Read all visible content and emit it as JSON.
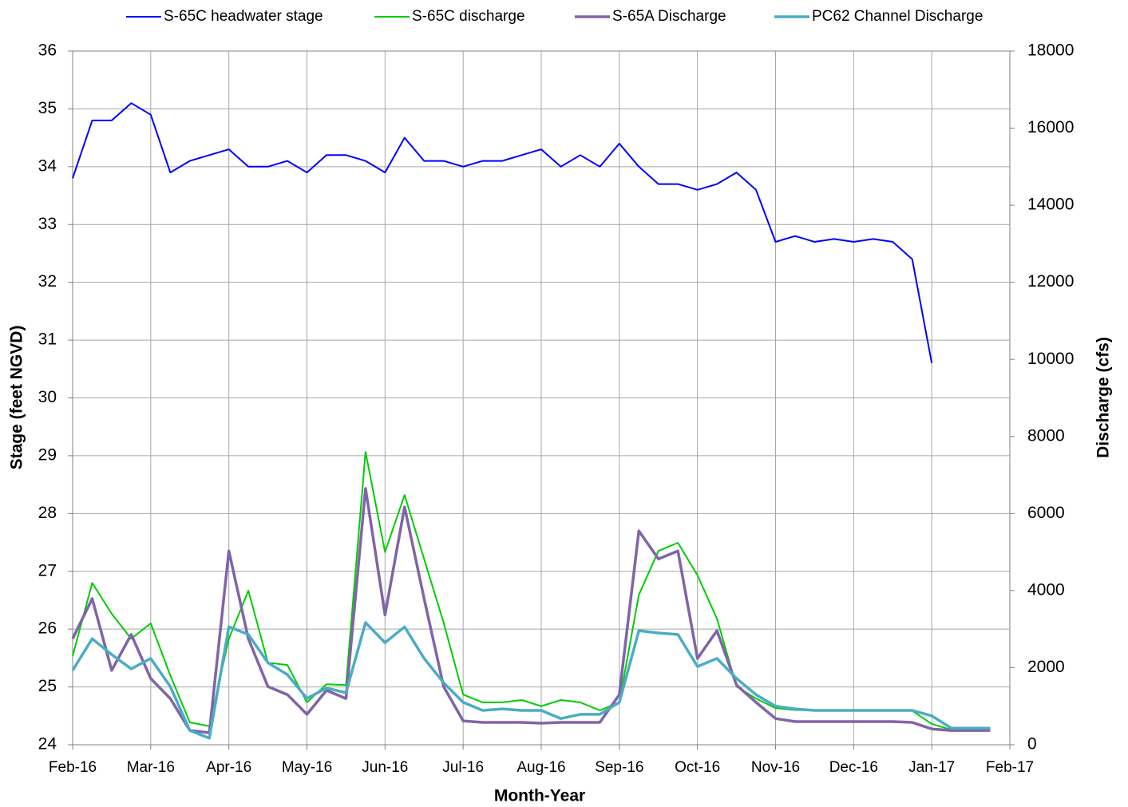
{
  "chart_data": {
    "type": "line",
    "xlabel": "Month-Year",
    "ylabel": "Stage (feet NGVD)",
    "y2label": "Discharge (cfs)",
    "x": [
      0,
      0.25,
      0.5,
      0.75,
      1,
      1.25,
      1.5,
      1.75,
      2,
      2.25,
      2.5,
      2.75,
      3,
      3.25,
      3.5,
      3.75,
      4,
      4.25,
      4.5,
      4.75,
      5,
      5.25,
      5.5,
      5.75,
      6,
      6.25,
      6.5,
      6.75,
      7,
      7.25,
      7.5,
      7.75,
      8,
      8.25,
      8.5,
      8.75,
      9,
      9.25,
      9.5,
      9.75,
      10,
      10.25,
      10.5,
      10.75,
      11,
      11.25,
      11.5,
      11.75
    ],
    "xlim": [
      0,
      12
    ],
    "xticks": [
      {
        "value": 0,
        "label": "Feb-16"
      },
      {
        "value": 1,
        "label": "Mar-16"
      },
      {
        "value": 2,
        "label": "Apr-16"
      },
      {
        "value": 3,
        "label": "May-16"
      },
      {
        "value": 4,
        "label": "Jun-16"
      },
      {
        "value": 5,
        "label": "Jul-16"
      },
      {
        "value": 6,
        "label": "Aug-16"
      },
      {
        "value": 7,
        "label": "Sep-16"
      },
      {
        "value": 8,
        "label": "Oct-16"
      },
      {
        "value": 9,
        "label": "Nov-16"
      },
      {
        "value": 10,
        "label": "Dec-16"
      },
      {
        "value": 11,
        "label": "Jan-17"
      },
      {
        "value": 12,
        "label": "Feb-17"
      }
    ],
    "ylim": [
      24,
      36
    ],
    "yticks": [
      24,
      25,
      26,
      27,
      28,
      29,
      30,
      31,
      32,
      33,
      34,
      35,
      36
    ],
    "y2lim": [
      0,
      18000
    ],
    "y2ticks": [
      0,
      2000,
      4000,
      6000,
      8000,
      10000,
      12000,
      14000,
      16000,
      18000
    ],
    "grid": true,
    "legend": "top",
    "series": [
      {
        "name": "S-65C headwater stage",
        "color": "#0000ff",
        "values": [
          33.8,
          34.8,
          34.8,
          35.1,
          34.9,
          33.9,
          34.1,
          34.2,
          34.3,
          34.0,
          34.0,
          34.1,
          33.9,
          34.2,
          34.2,
          34.1,
          33.9,
          34.5,
          34.1,
          34.1,
          34.0,
          34.1,
          34.1,
          34.2,
          34.3,
          34.0,
          34.2,
          34.0,
          34.4,
          34.0,
          33.7,
          33.7,
          33.6,
          33.7,
          33.9,
          33.6,
          32.7,
          32.8,
          32.7,
          32.75,
          32.7,
          32.75,
          32.7,
          32.4,
          30.6,
          null,
          null,
          null
        ]
      },
      {
        "name": "S-65C discharge",
        "color": "#00cc00",
        "axis": "y2",
        "values": [
          2300,
          4200,
          3400,
          2750,
          3150,
          1800,
          580,
          480,
          2750,
          4000,
          2130,
          2070,
          1100,
          1570,
          1550,
          7600,
          5000,
          6480,
          4820,
          3170,
          1300,
          1100,
          1100,
          1160,
          1000,
          1160,
          1100,
          890,
          1100,
          3890,
          5030,
          5240,
          4400,
          3270,
          1510,
          1200,
          950,
          900,
          890,
          880,
          880,
          880,
          880,
          880,
          540,
          390,
          390,
          390
        ]
      },
      {
        "name": "S-65A Discharge",
        "color": "#8064a8",
        "axis": "y2",
        "values": [
          2750,
          3790,
          1930,
          2860,
          1720,
          1200,
          370,
          310,
          5030,
          2750,
          1510,
          1300,
          790,
          1410,
          1200,
          6650,
          3370,
          6170,
          3790,
          1510,
          620,
          580,
          580,
          580,
          560,
          580,
          580,
          580,
          1300,
          5550,
          4820,
          5030,
          2240,
          2960,
          1550,
          1100,
          680,
          600,
          600,
          600,
          600,
          600,
          600,
          580,
          410,
          370,
          370,
          370
        ]
      },
      {
        "name": "PC62 Channel Discharge",
        "color": "#4bacc6",
        "axis": "y2",
        "values": [
          1930,
          2750,
          2340,
          1970,
          2240,
          1510,
          370,
          170,
          3060,
          2860,
          2130,
          1820,
          1200,
          1470,
          1350,
          3170,
          2650,
          3060,
          2240,
          1610,
          1100,
          890,
          930,
          890,
          890,
          680,
          790,
          790,
          1100,
          2960,
          2900,
          2860,
          2030,
          2240,
          1720,
          1300,
          1000,
          930,
          890,
          890,
          890,
          890,
          890,
          890,
          750,
          430,
          430,
          430
        ]
      }
    ]
  }
}
